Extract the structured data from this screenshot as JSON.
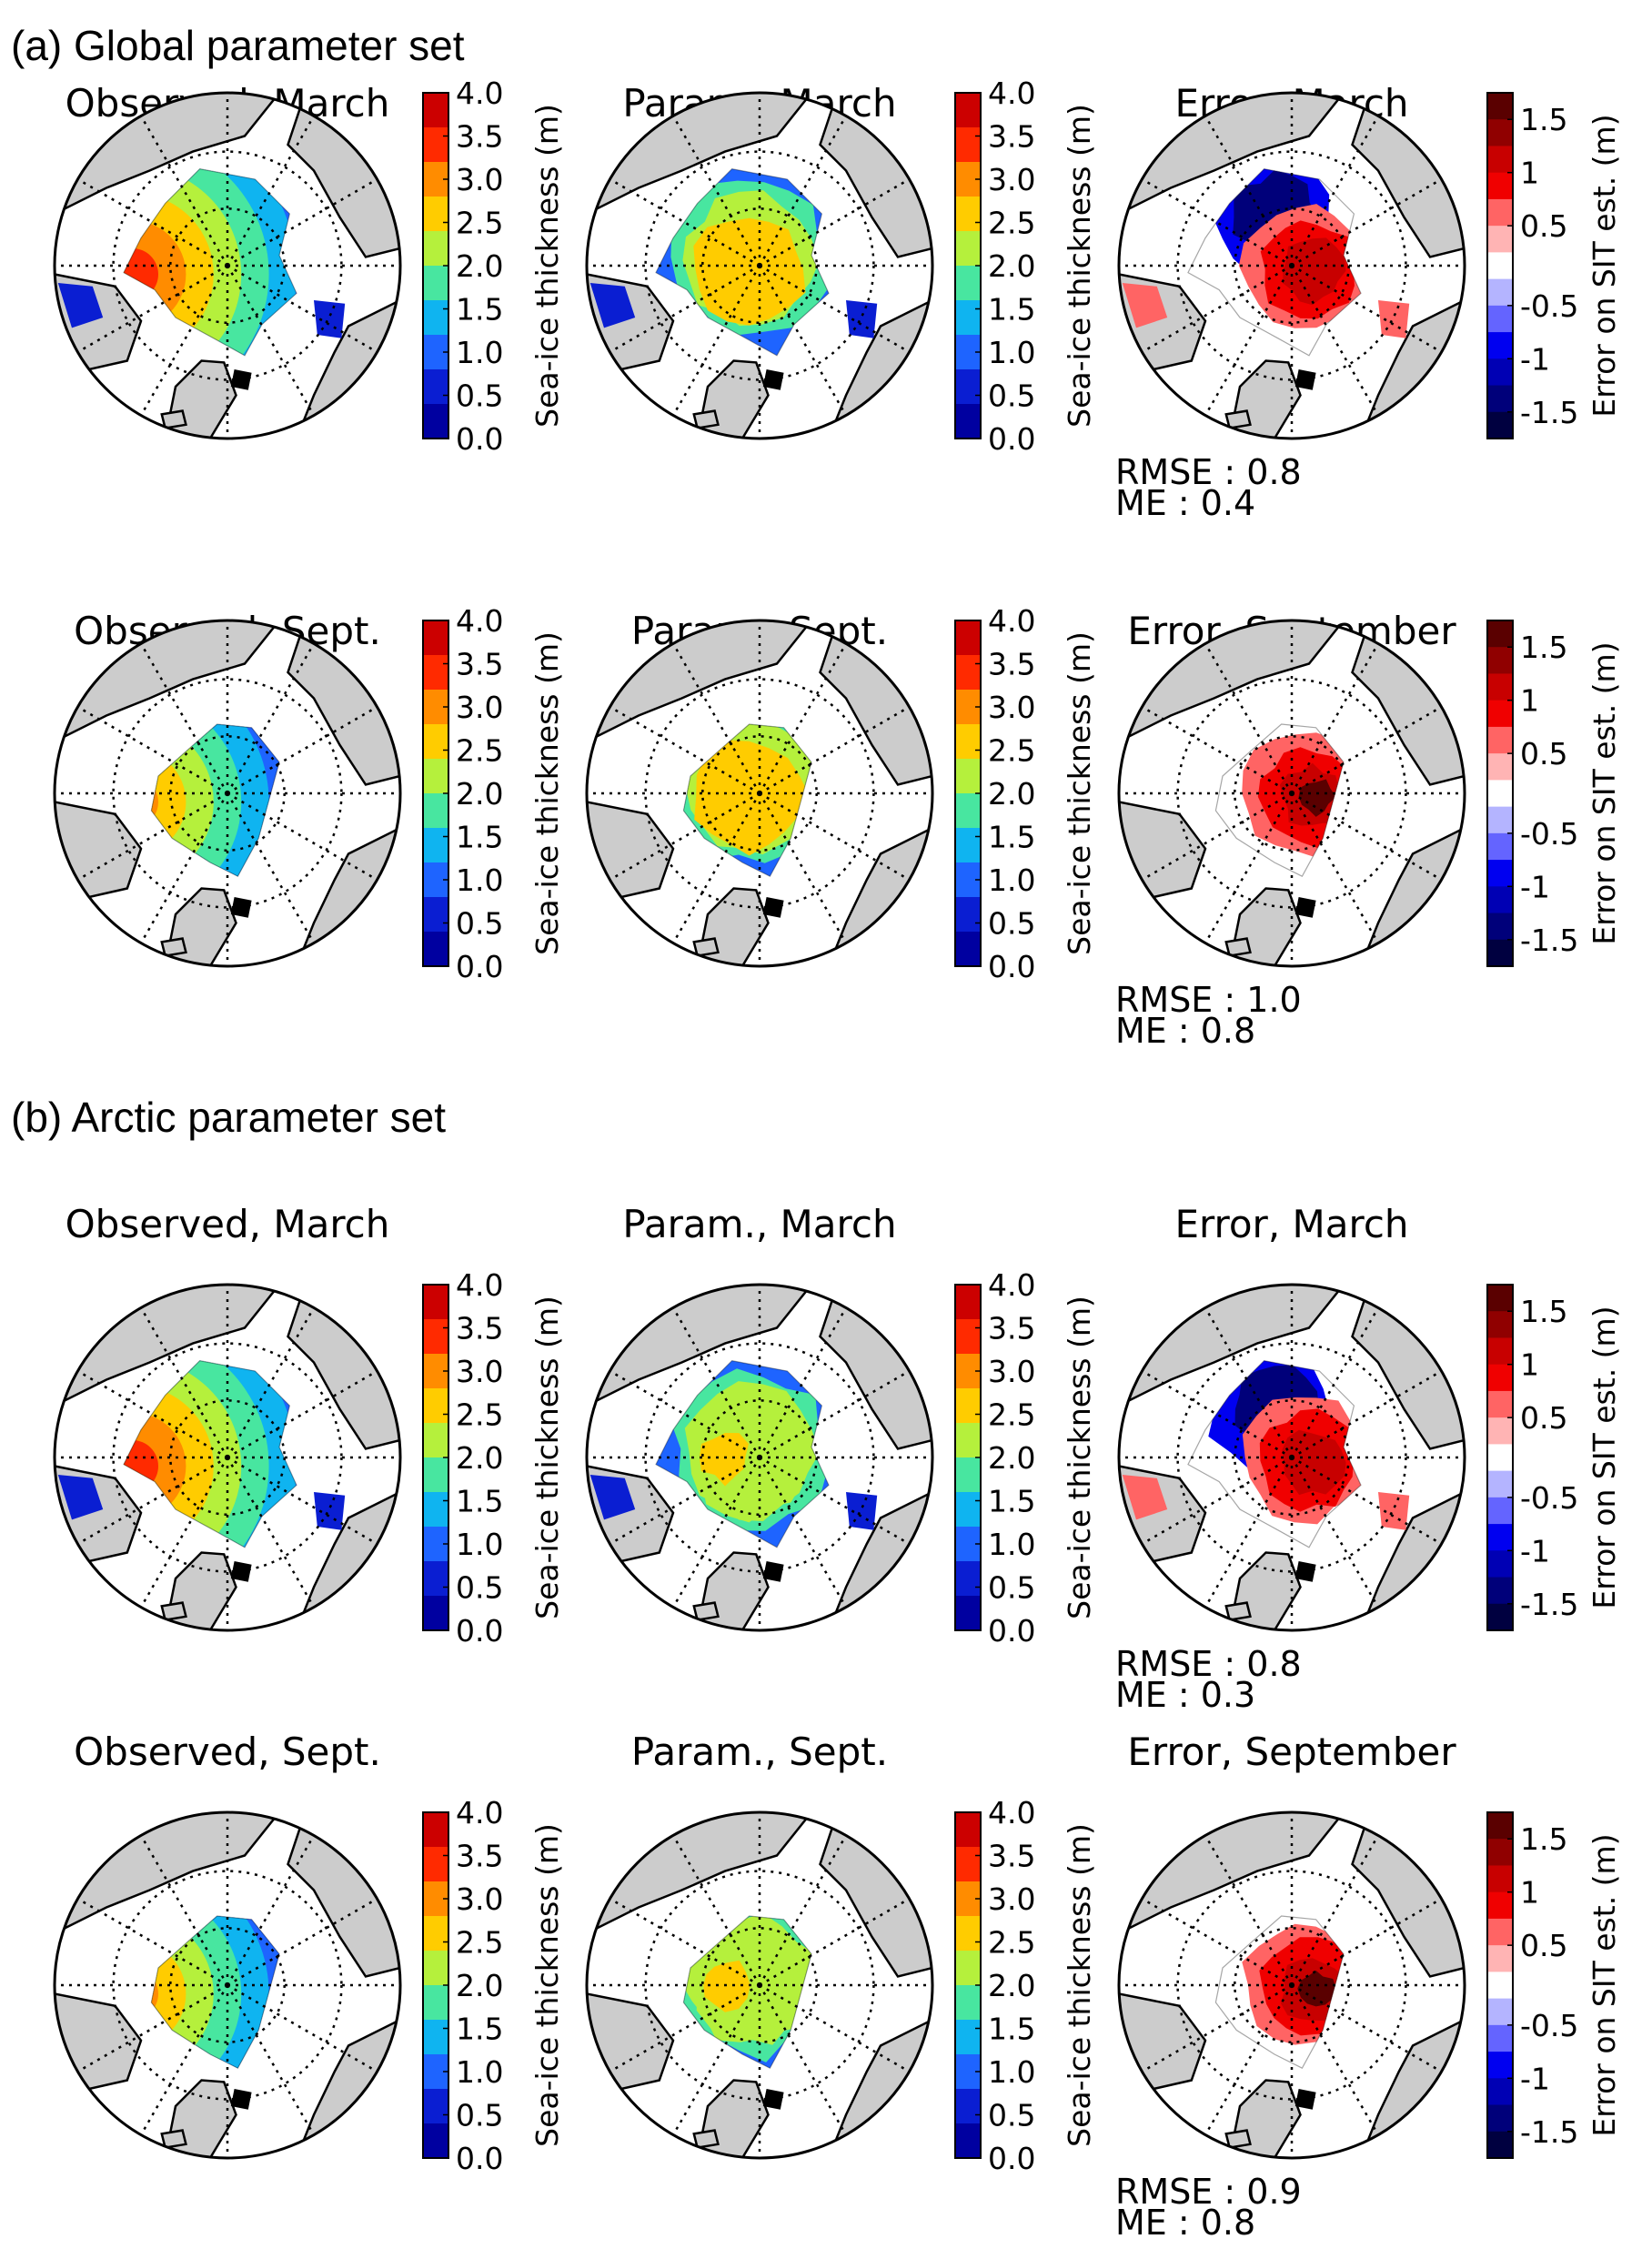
{
  "sections": [
    {
      "label": "(a) Global parameter set"
    },
    {
      "label": "(b) Arctic parameter set"
    }
  ],
  "colorbars": {
    "thickness": {
      "label": "Sea-ice thickness (m)",
      "ticks": [
        "4.0",
        "3.5",
        "3.0",
        "2.5",
        "2.0",
        "1.5",
        "1.0",
        "0.5",
        "0.0"
      ],
      "colors": [
        "#cc0000",
        "#ff2a00",
        "#ff8c00",
        "#ffcc00",
        "#b5f03c",
        "#48e6a0",
        "#0fb4f0",
        "#1e64ff",
        "#0a1ed2",
        "#0000a0"
      ]
    },
    "error": {
      "label": "Error on SIT est. (m)",
      "ticks": [
        "1.5",
        "1",
        "0.5",
        "-0.5",
        "-1",
        "-1.5"
      ],
      "colors": [
        "#5a0000",
        "#900000",
        "#c80000",
        "#f00000",
        "#ff6464",
        "#ffb4b4",
        "#ffffff",
        "#b4b4ff",
        "#6464ff",
        "#0000f0",
        "#0000b4",
        "#00007a",
        "#000040"
      ]
    }
  },
  "panels": [
    {
      "title": "Observed, March",
      "type": "obs_march",
      "cbar": "thickness"
    },
    {
      "title": "Param., March",
      "type": "param_march_global",
      "cbar": "thickness"
    },
    {
      "title": "Error, March",
      "type": "err_march_global",
      "cbar": "error",
      "rmse": "RMSE : 0.8",
      "me": "ME : 0.4"
    },
    {
      "title": "Observed, Sept.",
      "type": "obs_sept",
      "cbar": "thickness"
    },
    {
      "title": "Param., Sept.",
      "type": "param_sept_global",
      "cbar": "thickness"
    },
    {
      "title": "Error, September",
      "type": "err_sept_global",
      "cbar": "error",
      "rmse": "RMSE : 1.0",
      "me": "ME : 0.8"
    },
    {
      "title": "Observed, March",
      "type": "obs_march",
      "cbar": "thickness"
    },
    {
      "title": "Param., March",
      "type": "param_march_arctic",
      "cbar": "thickness"
    },
    {
      "title": "Error, March",
      "type": "err_march_arctic",
      "cbar": "error",
      "rmse": "RMSE : 0.8",
      "me": "ME : 0.3"
    },
    {
      "title": "Observed, Sept.",
      "type": "obs_sept",
      "cbar": "thickness"
    },
    {
      "title": "Param., Sept.",
      "type": "param_sept_arctic",
      "cbar": "thickness"
    },
    {
      "title": "Error, September",
      "type": "err_sept_arctic",
      "cbar": "error",
      "rmse": "RMSE : 0.9",
      "me": "ME : 0.8"
    }
  ],
  "map_colors": {
    "land": "#cccccc",
    "ocean": "#ffffff",
    "coast": "#000000"
  }
}
